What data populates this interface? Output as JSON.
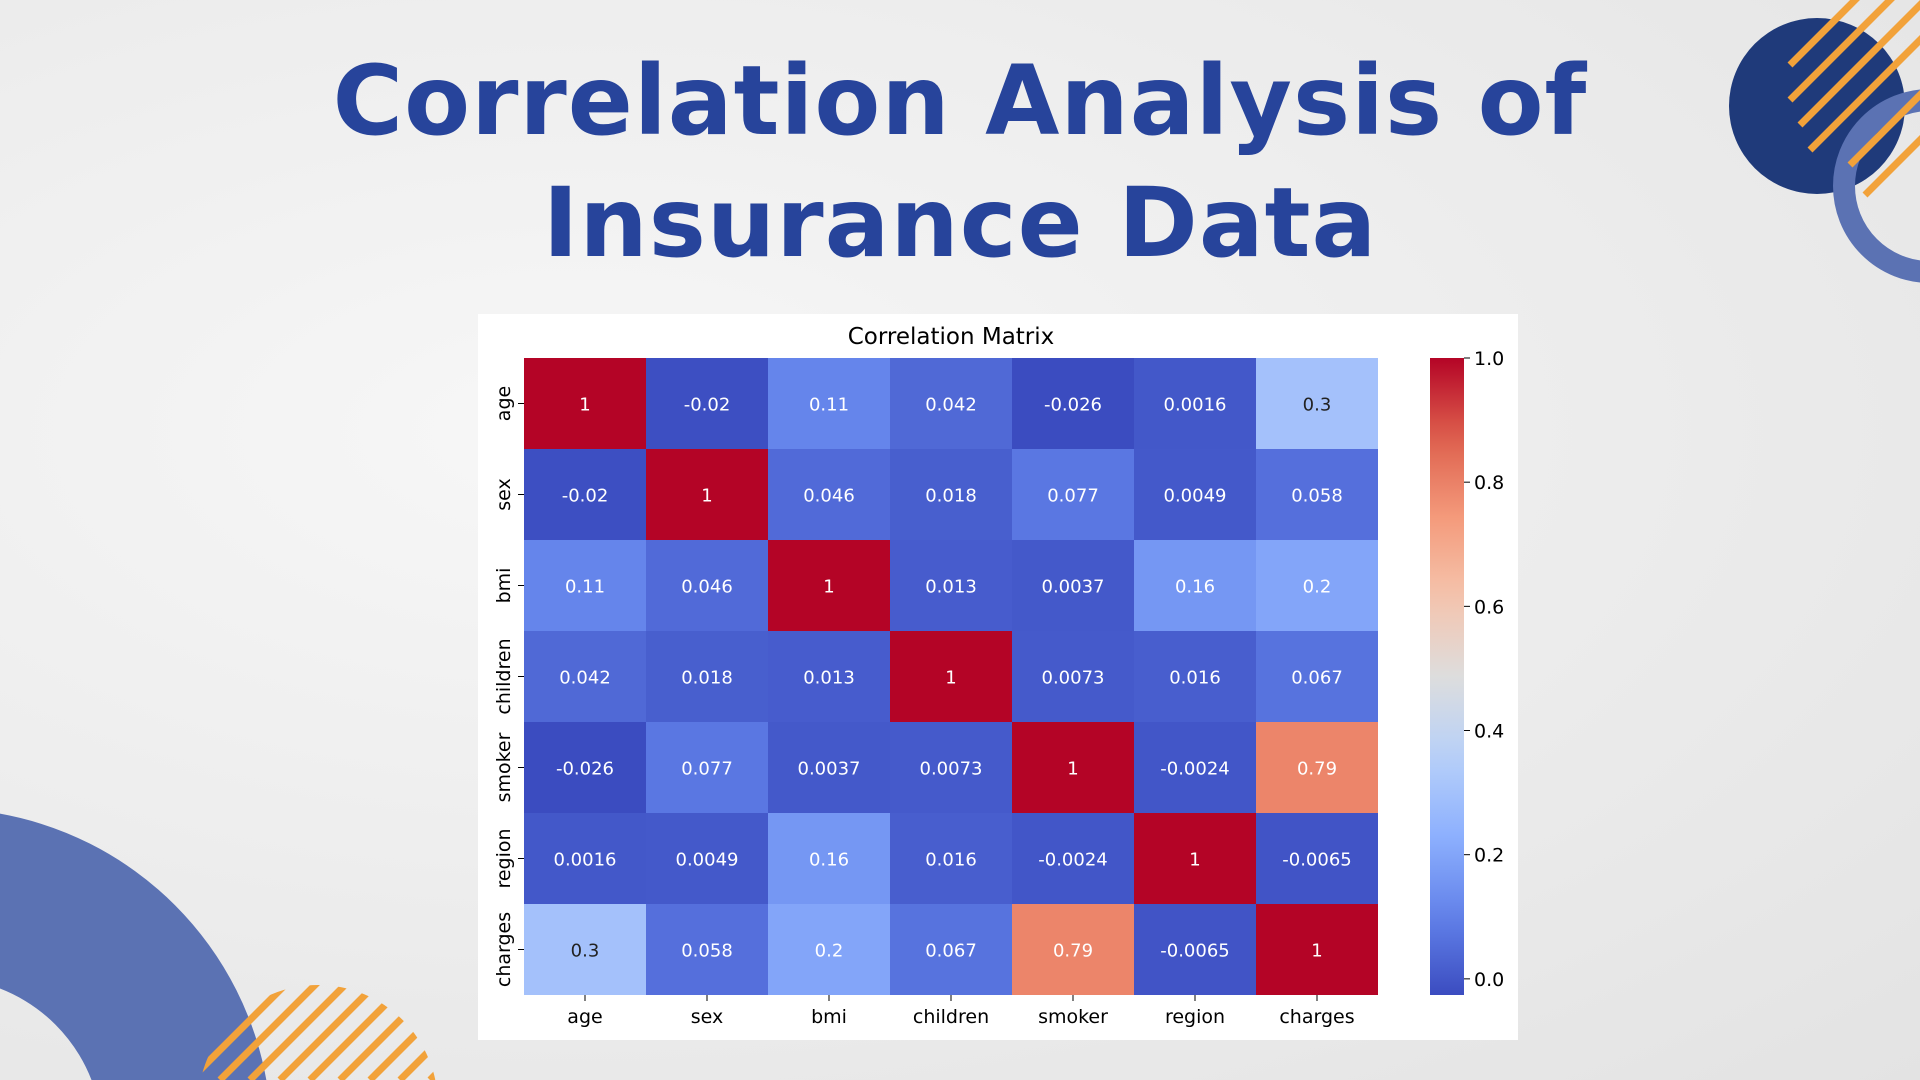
{
  "slide": {
    "title_line1": "Correlation Analysis of",
    "title_line2": "Insurance Data"
  },
  "colors": {
    "title": "#27449b",
    "deco_navy": "#1f3a7a",
    "deco_blue": "#5b72b3",
    "deco_orange": "#f2a23a",
    "panel_bg": "#ffffff"
  },
  "chart_data": {
    "type": "heatmap",
    "title": "Correlation Matrix",
    "x_labels": [
      "age",
      "sex",
      "bmi",
      "children",
      "smoker",
      "region",
      "charges"
    ],
    "y_labels": [
      "age",
      "sex",
      "bmi",
      "children",
      "smoker",
      "region",
      "charges"
    ],
    "values": [
      [
        1,
        -0.02,
        0.11,
        0.042,
        -0.026,
        0.0016,
        0.3
      ],
      [
        -0.02,
        1,
        0.046,
        0.018,
        0.077,
        0.0049,
        0.058
      ],
      [
        0.11,
        0.046,
        1,
        0.013,
        0.0037,
        0.16,
        0.2
      ],
      [
        0.042,
        0.018,
        0.013,
        1,
        0.0073,
        0.016,
        0.067
      ],
      [
        -0.026,
        0.077,
        0.0037,
        0.0073,
        1,
        -0.0024,
        0.79
      ],
      [
        0.0016,
        0.0049,
        0.16,
        0.016,
        -0.0024,
        1,
        -0.0065
      ],
      [
        0.3,
        0.058,
        0.2,
        0.067,
        0.79,
        -0.0065,
        1
      ]
    ],
    "annotations": [
      [
        "1",
        "-0.02",
        "0.11",
        "0.042",
        "-0.026",
        "0.0016",
        "0.3"
      ],
      [
        "-0.02",
        "1",
        "0.046",
        "0.018",
        "0.077",
        "0.0049",
        "0.058"
      ],
      [
        "0.11",
        "0.046",
        "1",
        "0.013",
        "0.0037",
        "0.16",
        "0.2"
      ],
      [
        "0.042",
        "0.018",
        "0.013",
        "1",
        "0.0073",
        "0.016",
        "0.067"
      ],
      [
        "-0.026",
        "0.077",
        "0.0037",
        "0.0073",
        "1",
        "-0.0024",
        "0.79"
      ],
      [
        "0.0016",
        "0.0049",
        "0.16",
        "0.016",
        "-0.0024",
        "1",
        "-0.0065"
      ],
      [
        "0.3",
        "0.058",
        "0.2",
        "0.067",
        "0.79",
        "-0.0065",
        "1"
      ]
    ],
    "colormap": "coolwarm",
    "color_range": [
      -0.026,
      1.0
    ],
    "colorbar_ticks": [
      "0.0",
      "0.2",
      "0.4",
      "0.6",
      "0.8",
      "1.0"
    ],
    "colorbar_tick_values": [
      0.0,
      0.2,
      0.4,
      0.6,
      0.8,
      1.0
    ]
  }
}
